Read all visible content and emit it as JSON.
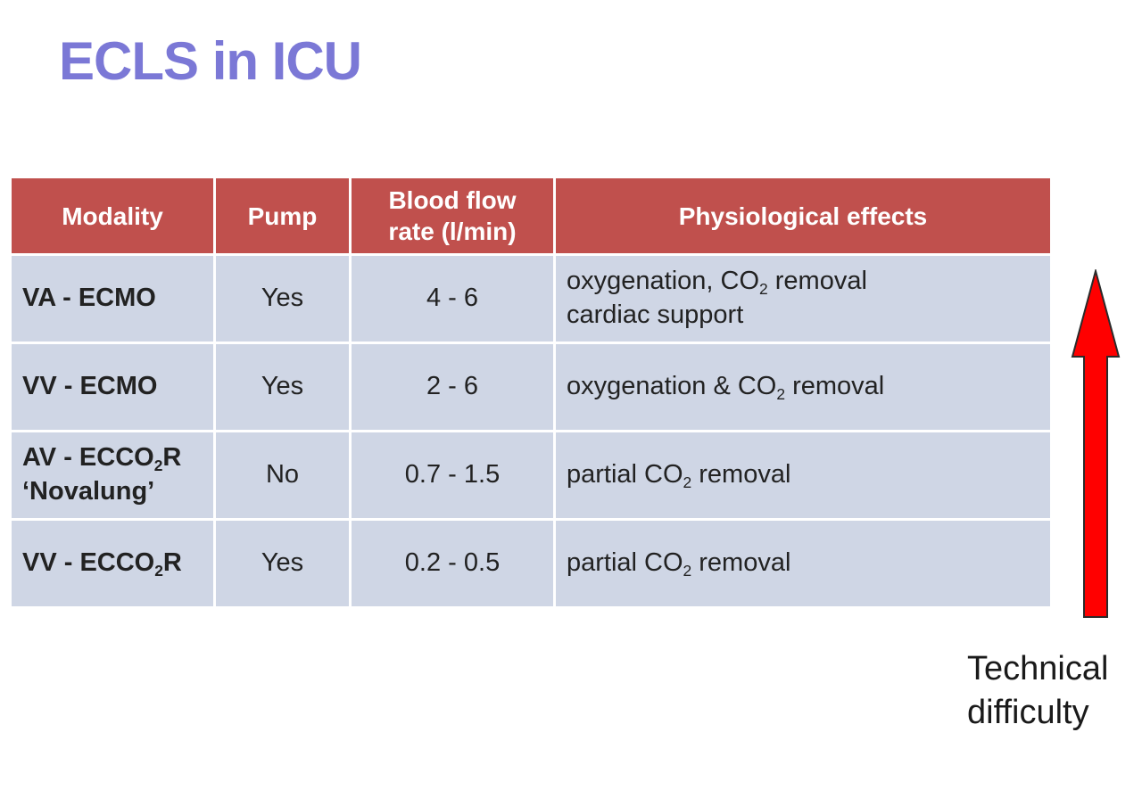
{
  "title": "ECLS in ICU",
  "table": {
    "headers": [
      "Modality",
      "Pump",
      "Blood flow",
      "rate (l/min)",
      "Physiological effects"
    ],
    "rows": [
      {
        "modality": "VA - ECMO",
        "pump": "Yes",
        "flow": "4 - 6",
        "effects_line1_pre": "oxygenation, CO",
        "effects_line1_sub": "2",
        "effects_line1_post": " removal",
        "effects_line2": "cardiac support"
      },
      {
        "modality": "VV - ECMO",
        "pump": "Yes",
        "flow": "2 - 6",
        "effects_pre": "oxygenation & CO",
        "effects_sub": "2",
        "effects_post": " removal"
      },
      {
        "modality_pre": "AV - ECCO",
        "modality_sub": "2",
        "modality_post": "R",
        "modality_line2": "‘Novalung’",
        "pump": "No",
        "flow": "0.7 - 1.5",
        "effects_pre": "partial CO",
        "effects_sub": "2",
        "effects_post": " removal"
      },
      {
        "modality_pre": "VV - ECCO",
        "modality_sub": "2",
        "modality_post": "R",
        "pump": "Yes",
        "flow": "0.2 - 0.5",
        "effects_pre": "partial CO",
        "effects_sub": "2",
        "effects_post": " removal"
      }
    ]
  },
  "arrow": {
    "direction": "up",
    "color": "#ff0000"
  },
  "difficulty_label": [
    "Technical",
    "difficulty"
  ]
}
